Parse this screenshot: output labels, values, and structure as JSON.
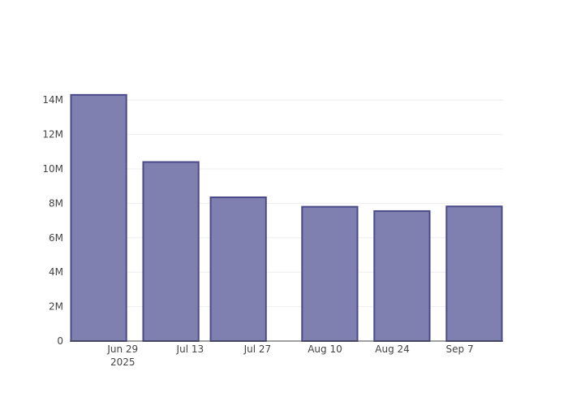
{
  "chart_data": {
    "type": "bar",
    "title": "",
    "xlabel": "",
    "ylabel": "",
    "x_axis_type": "date",
    "x": [
      "2025-06-24",
      "2025-07-09",
      "2025-07-23",
      "2025-08-11",
      "2025-08-26",
      "2025-09-10"
    ],
    "values": [
      14300000,
      10400000,
      8350000,
      7800000,
      7550000,
      7820000
    ],
    "bar_width_days": 11.5,
    "ylim": [
      0,
      15000000
    ],
    "xlim": [
      "2025-06-18",
      "2025-09-16"
    ],
    "y_ticks": [
      {
        "value": 0,
        "label": "0"
      },
      {
        "value": 2000000,
        "label": "2M"
      },
      {
        "value": 4000000,
        "label": "4M"
      },
      {
        "value": 6000000,
        "label": "6M"
      },
      {
        "value": 8000000,
        "label": "8M"
      },
      {
        "value": 10000000,
        "label": "10M"
      },
      {
        "value": 12000000,
        "label": "12M"
      },
      {
        "value": 14000000,
        "label": "14M"
      }
    ],
    "x_ticks": [
      {
        "date": "2025-06-29",
        "label": "Jun 29",
        "sublabel": "2025"
      },
      {
        "date": "2025-07-13",
        "label": "Jul 13"
      },
      {
        "date": "2025-07-27",
        "label": "Jul 27"
      },
      {
        "date": "2025-08-10",
        "label": "Aug 10"
      },
      {
        "date": "2025-08-24",
        "label": "Aug 24"
      },
      {
        "date": "2025-09-07",
        "label": "Sep 7"
      }
    ],
    "grid": true,
    "legend": false,
    "colors": {
      "bar_fill": "#7f7fb0",
      "bar_stroke": "#4a4a8a",
      "grid": "#eeeeee",
      "axis": "#444444"
    }
  }
}
